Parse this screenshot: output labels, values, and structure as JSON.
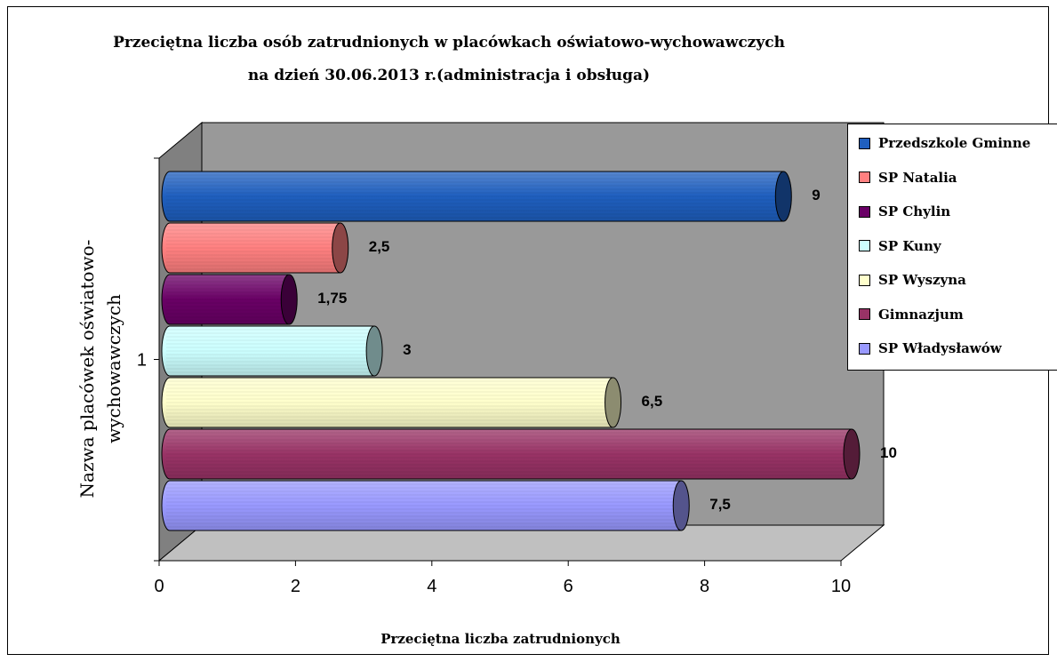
{
  "chart_data": {
    "type": "bar",
    "orientation": "horizontal",
    "three_d": true,
    "title": "Przeciętna liczba osób zatrudnionych w placówkach oświatowo-wychowawczych",
    "subtitle": "na dzień 30.06.2013 r.(administracja i obsługa)",
    "xlabel": "Przeciętna liczba zatrudnionych",
    "ylabel_line1": "Nazwa placówek oświatowo-",
    "ylabel_line2": "wychowawczych",
    "categories": [
      "1"
    ],
    "xlim": [
      0,
      10
    ],
    "xticks": [
      "0",
      "2",
      "4",
      "6",
      "8",
      "10"
    ],
    "legend_position": "right",
    "series": [
      {
        "name": "Przedszkole Gminne",
        "values": [
          9
        ],
        "label": "9",
        "color": "#1f5fbf"
      },
      {
        "name": "SP Natalia",
        "values": [
          2.5
        ],
        "label": "2,5",
        "color": "#ff8080"
      },
      {
        "name": "SP Chylin",
        "values": [
          1.75
        ],
        "label": "1,75",
        "color": "#6a0066"
      },
      {
        "name": "SP Kuny",
        "values": [
          3
        ],
        "label": "3",
        "color": "#ccffff"
      },
      {
        "name": "SP Wyszyna",
        "values": [
          6.5
        ],
        "label": "6,5",
        "color": "#ffffcc"
      },
      {
        "name": "Gimnazjum",
        "values": [
          10
        ],
        "label": "10",
        "color": "#993366"
      },
      {
        "name": "SP Władysławów",
        "values": [
          7.5
        ],
        "label": "7,5",
        "color": "#9999ff"
      }
    ]
  }
}
